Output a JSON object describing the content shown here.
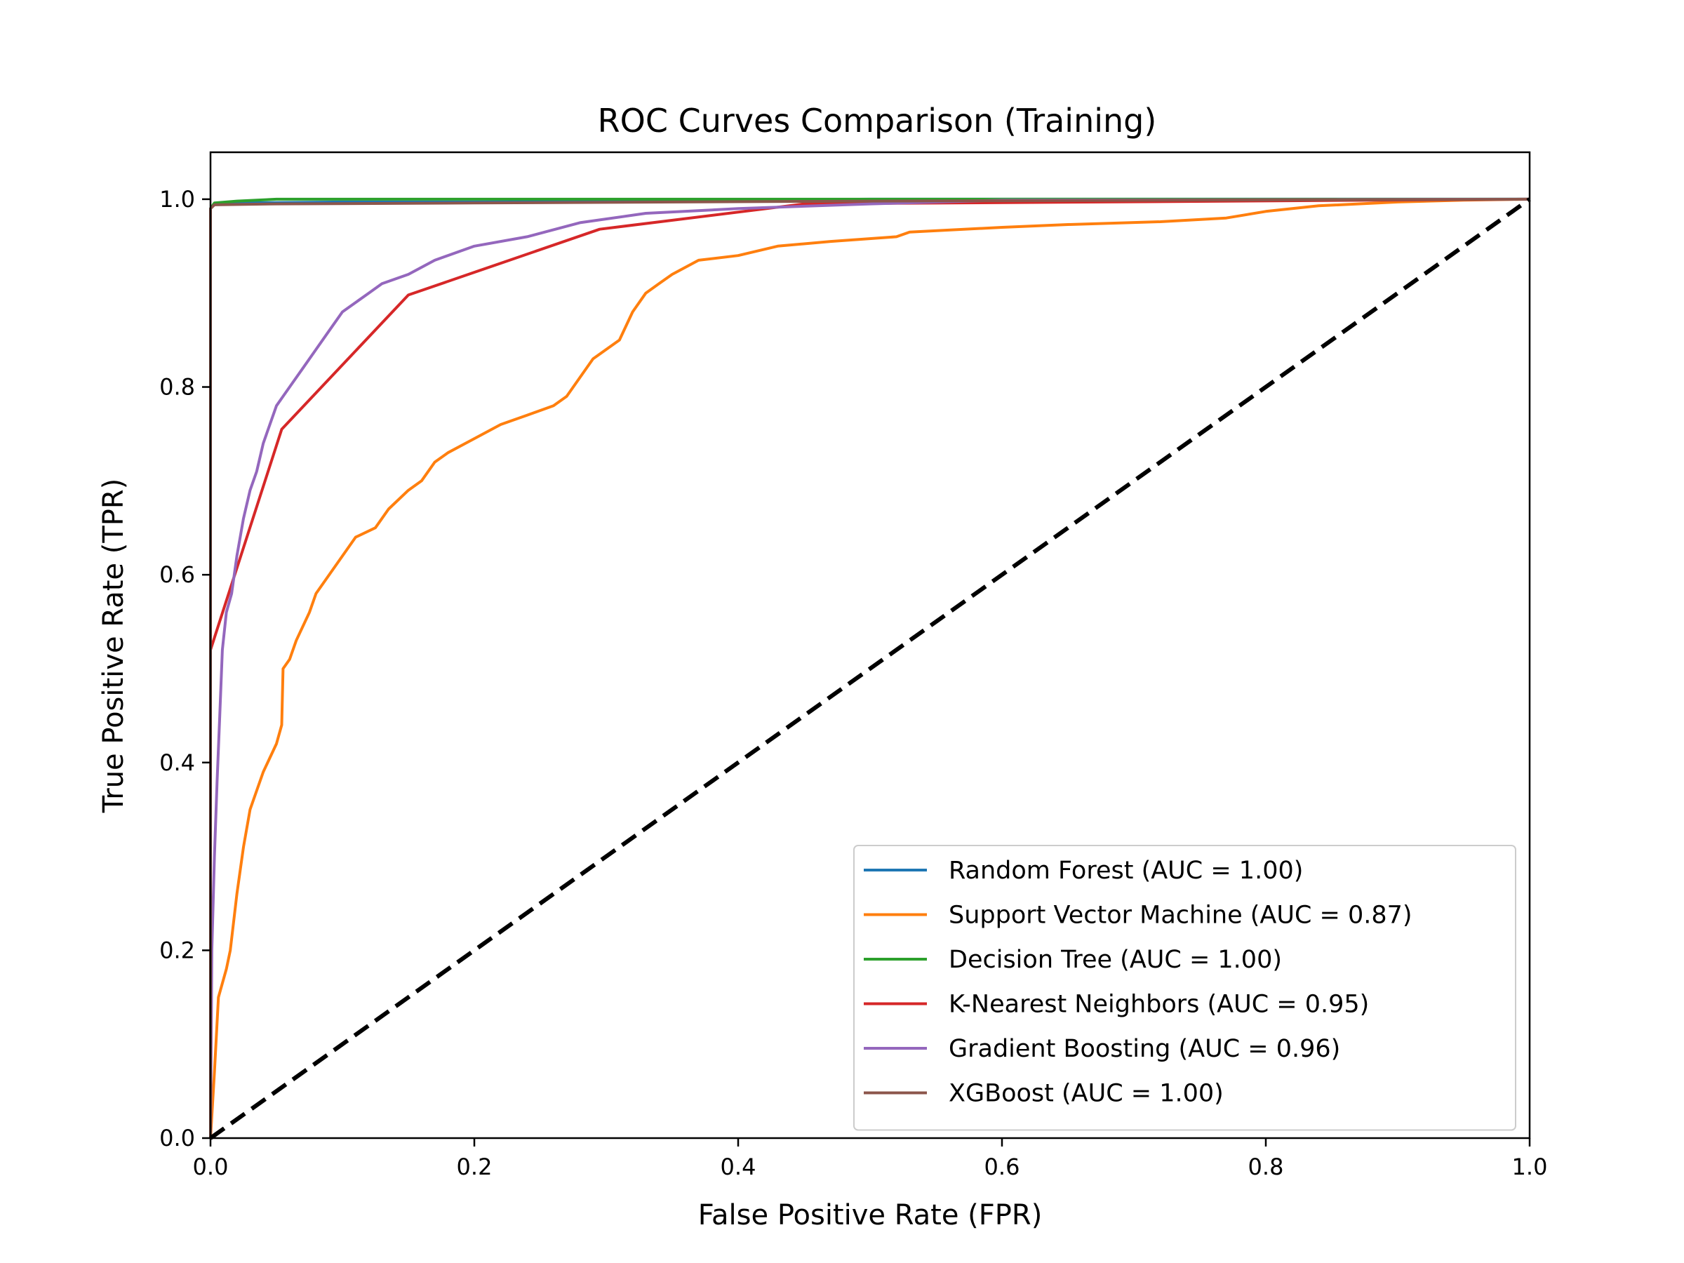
{
  "chart_data": {
    "type": "line",
    "title": "ROC Curves Comparison (Training)",
    "xlabel": "False Positive Rate (FPR)",
    "ylabel": "True Positive Rate (TPR)",
    "xlim": [
      0.0,
      1.0
    ],
    "ylim": [
      0.0,
      1.05
    ],
    "xticks": [
      {
        "value": 0.0,
        "label": "0.0"
      },
      {
        "value": 0.2,
        "label": "0.2"
      },
      {
        "value": 0.4,
        "label": "0.4"
      },
      {
        "value": 0.6,
        "label": "0.6"
      },
      {
        "value": 0.8,
        "label": "0.8"
      },
      {
        "value": 1.0,
        "label": "1.0"
      }
    ],
    "yticks": [
      {
        "value": 0.0,
        "label": "0.0"
      },
      {
        "value": 0.2,
        "label": "0.2"
      },
      {
        "value": 0.4,
        "label": "0.4"
      },
      {
        "value": 0.6,
        "label": "0.6"
      },
      {
        "value": 0.8,
        "label": "0.8"
      },
      {
        "value": 1.0,
        "label": "1.0"
      }
    ],
    "grid": false,
    "legend_position": "lower-right",
    "series": [
      {
        "name": "Random Forest (AUC = 1.00)",
        "color": "#1f77b4",
        "points": [
          [
            0,
            0
          ],
          [
            0.0,
            0.99
          ],
          [
            0.003,
            0.995
          ],
          [
            0.02,
            0.996
          ],
          [
            0.1,
            0.997
          ],
          [
            0.2,
            0.997
          ],
          [
            0.3,
            0.998
          ],
          [
            0.4,
            0.999
          ],
          [
            0.5,
            1.0
          ],
          [
            1.0,
            1.0
          ]
        ]
      },
      {
        "name": "Support Vector Machine (AUC = 0.87)",
        "color": "#ff7f0e",
        "points": [
          [
            0,
            0
          ],
          [
            0.003,
            0.07
          ],
          [
            0.006,
            0.15
          ],
          [
            0.012,
            0.18
          ],
          [
            0.015,
            0.2
          ],
          [
            0.02,
            0.26
          ],
          [
            0.025,
            0.31
          ],
          [
            0.03,
            0.35
          ],
          [
            0.035,
            0.37
          ],
          [
            0.04,
            0.39
          ],
          [
            0.05,
            0.42
          ],
          [
            0.054,
            0.44
          ],
          [
            0.055,
            0.5
          ],
          [
            0.06,
            0.51
          ],
          [
            0.065,
            0.53
          ],
          [
            0.075,
            0.56
          ],
          [
            0.08,
            0.58
          ],
          [
            0.09,
            0.6
          ],
          [
            0.1,
            0.62
          ],
          [
            0.11,
            0.64
          ],
          [
            0.125,
            0.65
          ],
          [
            0.135,
            0.67
          ],
          [
            0.15,
            0.69
          ],
          [
            0.16,
            0.7
          ],
          [
            0.17,
            0.72
          ],
          [
            0.18,
            0.73
          ],
          [
            0.2,
            0.745
          ],
          [
            0.22,
            0.76
          ],
          [
            0.24,
            0.77
          ],
          [
            0.26,
            0.78
          ],
          [
            0.27,
            0.79
          ],
          [
            0.28,
            0.81
          ],
          [
            0.29,
            0.83
          ],
          [
            0.3,
            0.84
          ],
          [
            0.31,
            0.85
          ],
          [
            0.32,
            0.88
          ],
          [
            0.33,
            0.9
          ],
          [
            0.34,
            0.91
          ],
          [
            0.35,
            0.92
          ],
          [
            0.37,
            0.935
          ],
          [
            0.4,
            0.94
          ],
          [
            0.43,
            0.95
          ],
          [
            0.47,
            0.955
          ],
          [
            0.52,
            0.96
          ],
          [
            0.53,
            0.965
          ],
          [
            0.6,
            0.97
          ],
          [
            0.65,
            0.973
          ],
          [
            0.72,
            0.976
          ],
          [
            0.77,
            0.98
          ],
          [
            0.8,
            0.987
          ],
          [
            0.84,
            0.993
          ],
          [
            0.9,
            0.997
          ],
          [
            0.95,
            0.999
          ],
          [
            1.0,
            1.0
          ]
        ]
      },
      {
        "name": "Decision Tree (AUC = 1.00)",
        "color": "#2ca02c",
        "points": [
          [
            0,
            0
          ],
          [
            0.0,
            0.99
          ],
          [
            0.003,
            0.996
          ],
          [
            0.02,
            0.998
          ],
          [
            0.05,
            1.0
          ],
          [
            1.0,
            1.0
          ]
        ]
      },
      {
        "name": "K-Nearest Neighbors (AUC = 0.95)",
        "color": "#d62728",
        "points": [
          [
            0,
            0.52
          ],
          [
            0.054,
            0.755
          ],
          [
            0.15,
            0.898
          ],
          [
            0.295,
            0.968
          ],
          [
            0.45,
            0.995
          ],
          [
            1.0,
            1.0
          ]
        ]
      },
      {
        "name": "Gradient Boosting (AUC = 0.96)",
        "color": "#9467bd",
        "points": [
          [
            0,
            0
          ],
          [
            0.001,
            0.2
          ],
          [
            0.003,
            0.3
          ],
          [
            0.005,
            0.38
          ],
          [
            0.007,
            0.45
          ],
          [
            0.009,
            0.52
          ],
          [
            0.012,
            0.56
          ],
          [
            0.016,
            0.58
          ],
          [
            0.02,
            0.62
          ],
          [
            0.025,
            0.66
          ],
          [
            0.03,
            0.69
          ],
          [
            0.035,
            0.71
          ],
          [
            0.04,
            0.74
          ],
          [
            0.045,
            0.76
          ],
          [
            0.05,
            0.78
          ],
          [
            0.055,
            0.79
          ],
          [
            0.06,
            0.8
          ],
          [
            0.07,
            0.82
          ],
          [
            0.08,
            0.84
          ],
          [
            0.09,
            0.86
          ],
          [
            0.1,
            0.88
          ],
          [
            0.11,
            0.89
          ],
          [
            0.12,
            0.9
          ],
          [
            0.13,
            0.91
          ],
          [
            0.15,
            0.92
          ],
          [
            0.17,
            0.935
          ],
          [
            0.2,
            0.95
          ],
          [
            0.24,
            0.96
          ],
          [
            0.28,
            0.975
          ],
          [
            0.33,
            0.985
          ],
          [
            0.4,
            0.99
          ],
          [
            0.5,
            0.995
          ],
          [
            0.6,
            0.999
          ],
          [
            1.0,
            1.0
          ]
        ]
      },
      {
        "name": "XGBoost (AUC = 1.00)",
        "color": "#8c564b",
        "points": [
          [
            0,
            0
          ],
          [
            0.0,
            0.99
          ],
          [
            0.003,
            0.994
          ],
          [
            0.05,
            0.995
          ],
          [
            0.2,
            0.996
          ],
          [
            0.5,
            0.998
          ],
          [
            1.0,
            1.0
          ]
        ]
      }
    ],
    "reference_line": {
      "color": "#000000",
      "points": [
        [
          0,
          0
        ],
        [
          1,
          1
        ]
      ]
    }
  }
}
